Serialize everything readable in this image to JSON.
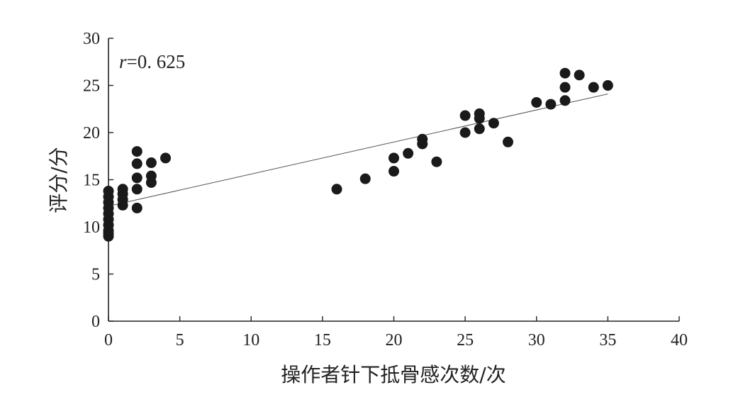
{
  "chart_data": {
    "type": "scatter",
    "title": "",
    "xlabel": "操作者针下抵骨感次数/次",
    "ylabel": "评分/分",
    "xlim": [
      0,
      40
    ],
    "ylim": [
      0,
      30
    ],
    "x_ticks": [
      0,
      5,
      10,
      15,
      20,
      25,
      30,
      35,
      40
    ],
    "y_ticks": [
      0,
      5,
      10,
      15,
      20,
      25,
      30
    ],
    "grid": false,
    "annotation": {
      "variable": "r",
      "text": "=0. 625"
    },
    "trendline": {
      "x": [
        0,
        35
      ],
      "y": [
        12.2,
        24.1
      ]
    },
    "marker_color": "#1a1a1a",
    "points": [
      {
        "x": 0,
        "y": 9.0
      },
      {
        "x": 0,
        "y": 9.3
      },
      {
        "x": 0,
        "y": 9.6
      },
      {
        "x": 0,
        "y": 10.2
      },
      {
        "x": 0,
        "y": 10.8
      },
      {
        "x": 0,
        "y": 11.4
      },
      {
        "x": 0,
        "y": 12.0
      },
      {
        "x": 0,
        "y": 12.6
      },
      {
        "x": 0,
        "y": 13.2
      },
      {
        "x": 0,
        "y": 13.8
      },
      {
        "x": 1,
        "y": 12.3
      },
      {
        "x": 1,
        "y": 12.9
      },
      {
        "x": 1,
        "y": 13.5
      },
      {
        "x": 1,
        "y": 14.0
      },
      {
        "x": 2,
        "y": 12.0
      },
      {
        "x": 2,
        "y": 14.0
      },
      {
        "x": 2,
        "y": 15.2
      },
      {
        "x": 2,
        "y": 16.7
      },
      {
        "x": 2,
        "y": 18.0
      },
      {
        "x": 3,
        "y": 14.7
      },
      {
        "x": 3,
        "y": 15.4
      },
      {
        "x": 3,
        "y": 16.8
      },
      {
        "x": 4,
        "y": 17.3
      },
      {
        "x": 16,
        "y": 14.0
      },
      {
        "x": 18,
        "y": 15.1
      },
      {
        "x": 20,
        "y": 15.9
      },
      {
        "x": 20,
        "y": 17.3
      },
      {
        "x": 21,
        "y": 17.8
      },
      {
        "x": 22,
        "y": 18.8
      },
      {
        "x": 22,
        "y": 19.3
      },
      {
        "x": 23,
        "y": 16.9
      },
      {
        "x": 25,
        "y": 20.0
      },
      {
        "x": 25,
        "y": 21.8
      },
      {
        "x": 26,
        "y": 20.4
      },
      {
        "x": 26,
        "y": 21.5
      },
      {
        "x": 26,
        "y": 22.0
      },
      {
        "x": 27,
        "y": 21.0
      },
      {
        "x": 28,
        "y": 19.0
      },
      {
        "x": 30,
        "y": 23.2
      },
      {
        "x": 31,
        "y": 23.0
      },
      {
        "x": 32,
        "y": 23.4
      },
      {
        "x": 32,
        "y": 24.8
      },
      {
        "x": 32,
        "y": 26.3
      },
      {
        "x": 33,
        "y": 26.1
      },
      {
        "x": 34,
        "y": 24.8
      },
      {
        "x": 35,
        "y": 25.0
      }
    ]
  }
}
